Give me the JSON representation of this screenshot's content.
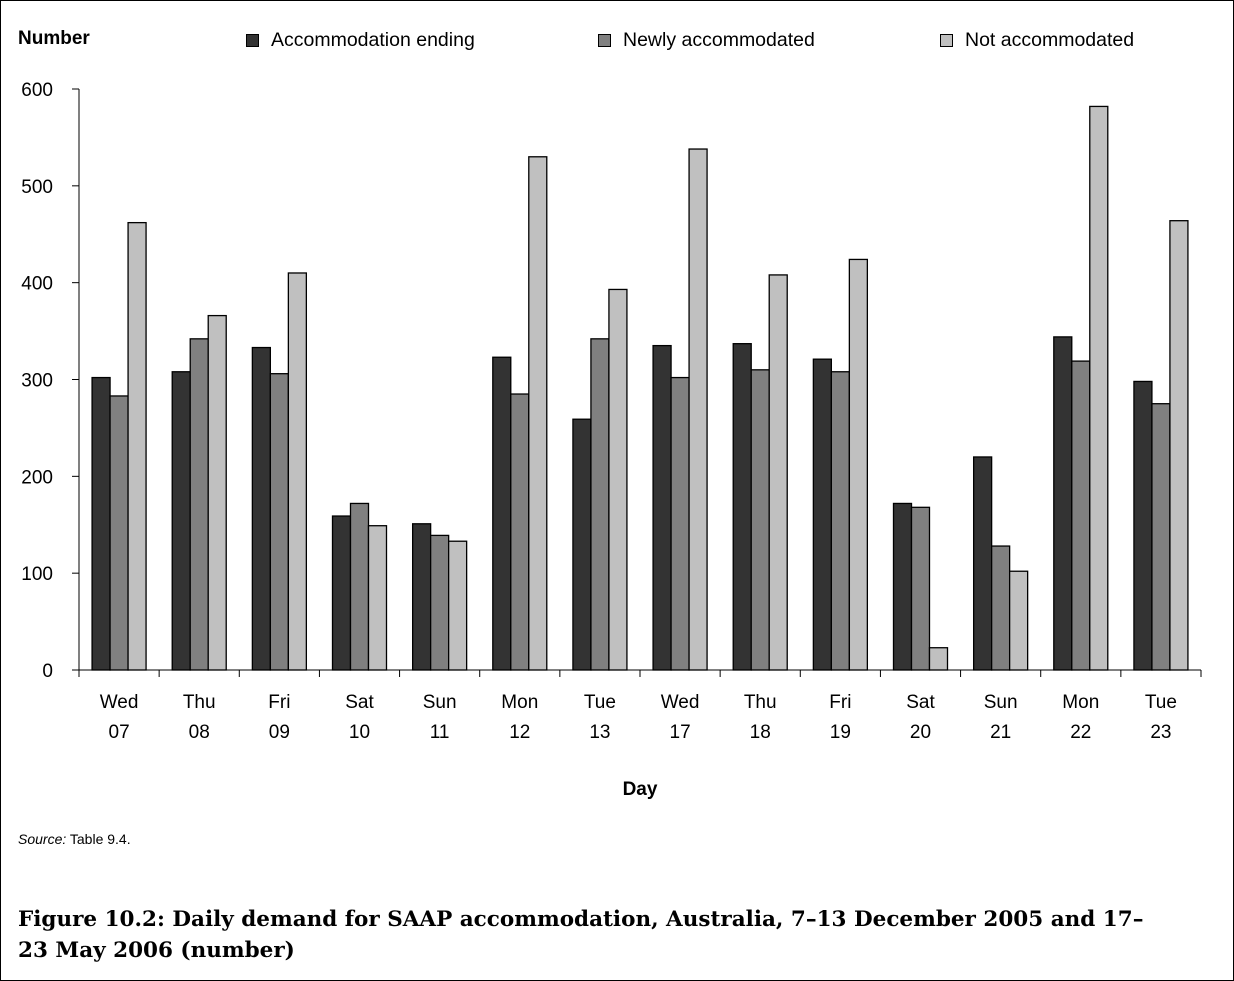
{
  "chart_data": {
    "type": "bar",
    "ylabel": "Number",
    "xlabel": "Day",
    "ylim": [
      0,
      600
    ],
    "yticks": [
      "0",
      "100",
      "200",
      "300",
      "400",
      "500",
      "600"
    ],
    "categories": [
      {
        "day": "Wed",
        "date": "07"
      },
      {
        "day": "Thu",
        "date": "08"
      },
      {
        "day": "Fri",
        "date": "09"
      },
      {
        "day": "Sat",
        "date": "10"
      },
      {
        "day": "Sun",
        "date": "11"
      },
      {
        "day": "Mon",
        "date": "12"
      },
      {
        "day": "Tue",
        "date": "13"
      },
      {
        "day": "Wed",
        "date": "17"
      },
      {
        "day": "Thu",
        "date": "18"
      },
      {
        "day": "Fri",
        "date": "19"
      },
      {
        "day": "Sat",
        "date": "20"
      },
      {
        "day": "Sun",
        "date": "21"
      },
      {
        "day": "Mon",
        "date": "22"
      },
      {
        "day": "Tue",
        "date": "23"
      }
    ],
    "series": [
      {
        "name": "Accommodation ending",
        "color": "#333333",
        "values": [
          302,
          308,
          333,
          159,
          151,
          323,
          259,
          335,
          337,
          321,
          172,
          220,
          344,
          298
        ]
      },
      {
        "name": "Newly accommodated",
        "color": "#808080",
        "values": [
          283,
          342,
          306,
          172,
          139,
          285,
          342,
          302,
          310,
          308,
          168,
          128,
          319,
          275
        ]
      },
      {
        "name": "Not accommodated",
        "color": "#c0c0c0",
        "values": [
          462,
          366,
          410,
          149,
          133,
          530,
          393,
          538,
          408,
          424,
          23,
          102,
          582,
          464
        ]
      }
    ],
    "grid": false,
    "legend_position": "top"
  },
  "source": {
    "prefix": "Source:",
    "text": " Table 9.4."
  },
  "caption": "Figure 10.2: Daily demand for SAAP accommodation, Australia, 7–13 December 2005 and 17–23 May 2006 (number)"
}
